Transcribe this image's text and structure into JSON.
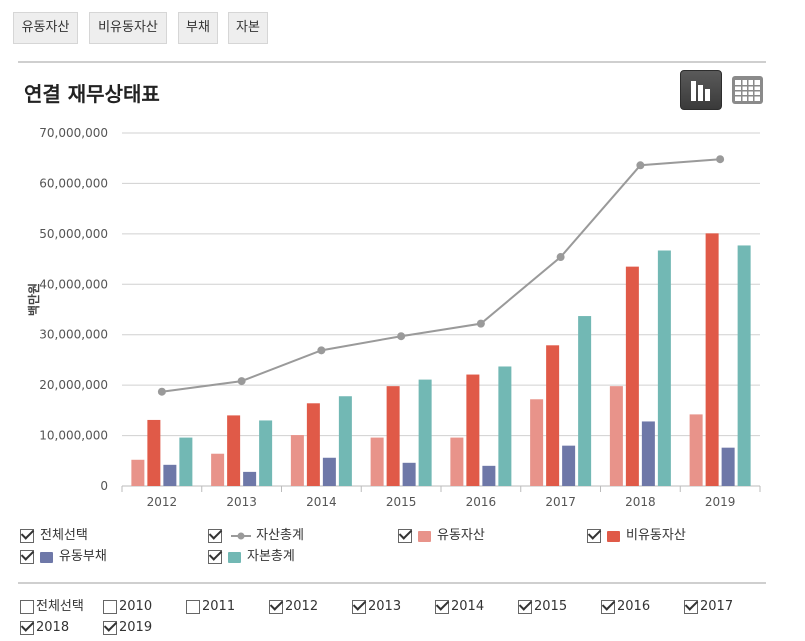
{
  "tabs": [
    "유동자산",
    "비유동자산",
    "부채",
    "자본"
  ],
  "page_title": "연결 재무상태표",
  "icons": {
    "chart_view": "bar-chart-icon",
    "table_view": "table-grid-icon"
  },
  "colors": {
    "total_assets": "#9a9a9a",
    "current_assets": "#e8938a",
    "noncurrent_assets": "#e05a48",
    "current_liabilities": "#6e78a8",
    "total_equity": "#72b8b4"
  },
  "chart_data": {
    "type": "bar",
    "title": "",
    "ylabel": "백만원",
    "xlabel": "",
    "ylim": [
      0,
      70000000
    ],
    "yticks": [
      "0",
      "10,000,000",
      "20,000,000",
      "30,000,000",
      "40,000,000",
      "50,000,000",
      "60,000,000",
      "70,000,000"
    ],
    "categories": [
      "2012",
      "2013",
      "2014",
      "2015",
      "2016",
      "2017",
      "2018",
      "2019"
    ],
    "line_series": {
      "name": "자산총계",
      "values": [
        18700000,
        20800000,
        26900000,
        29700000,
        32200000,
        45400000,
        63600000,
        64800000
      ]
    },
    "series": [
      {
        "name": "유동자산",
        "values": [
          5200000,
          6400000,
          10100000,
          9600000,
          9600000,
          17200000,
          19800000,
          14200000
        ]
      },
      {
        "name": "비유동자산",
        "values": [
          13100000,
          14000000,
          16400000,
          19800000,
          22100000,
          27900000,
          43500000,
          50100000
        ]
      },
      {
        "name": "유동부채",
        "values": [
          4200000,
          2800000,
          5600000,
          4600000,
          4000000,
          8000000,
          12800000,
          7600000
        ]
      },
      {
        "name": "자본총계",
        "values": [
          9600000,
          13000000,
          17800000,
          21100000,
          23700000,
          33700000,
          46700000,
          47700000
        ]
      }
    ],
    "grid": true,
    "legend": "bottom"
  },
  "series_filters": [
    {
      "label": "전체선택",
      "checked": true
    },
    {
      "label": "자산총계",
      "checked": true
    },
    {
      "label": "유동자산",
      "checked": true
    },
    {
      "label": "비유동자산",
      "checked": true
    },
    {
      "label": "유동부채",
      "checked": true
    },
    {
      "label": "자본총계",
      "checked": true
    }
  ],
  "year_filters": [
    {
      "label": "전체선택",
      "checked": false
    },
    {
      "label": "2010",
      "checked": false
    },
    {
      "label": "2011",
      "checked": false
    },
    {
      "label": "2012",
      "checked": true
    },
    {
      "label": "2013",
      "checked": true
    },
    {
      "label": "2014",
      "checked": true
    },
    {
      "label": "2015",
      "checked": true
    },
    {
      "label": "2016",
      "checked": true
    },
    {
      "label": "2017",
      "checked": true
    },
    {
      "label": "2018",
      "checked": true
    },
    {
      "label": "2019",
      "checked": true
    }
  ]
}
